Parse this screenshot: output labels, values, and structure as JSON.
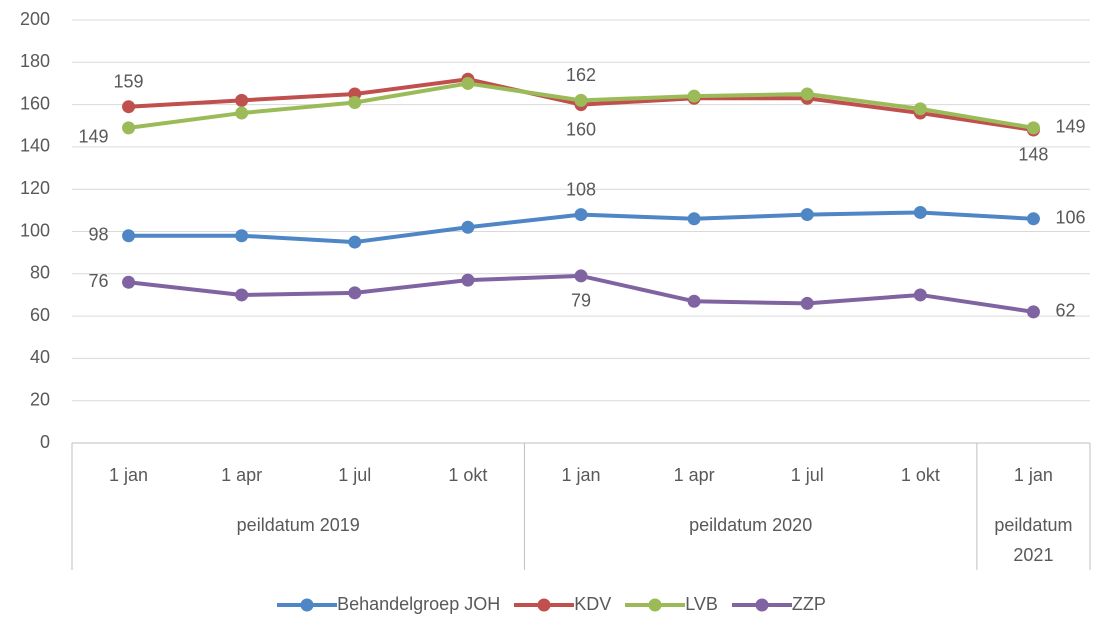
{
  "chart_data": {
    "type": "line",
    "categories": [
      "1 jan",
      "1 apr",
      "1 jul",
      "1 okt",
      "1 jan",
      "1 apr",
      "1 jul",
      "1 okt",
      "1 jan"
    ],
    "groups": [
      {
        "label": "peildatum 2019",
        "span": 4
      },
      {
        "label": "peildatum 2020",
        "span": 4
      },
      {
        "label": "peildatum 2021",
        "span": 1
      }
    ],
    "series": [
      {
        "name": "Behandelgroep JOH",
        "color": "#4f86c6",
        "values": [
          98,
          98,
          95,
          102,
          108,
          106,
          108,
          109,
          106
        ],
        "label_positions": [
          "left",
          "above",
          "right"
        ]
      },
      {
        "name": "KDV",
        "color": "#c0504d",
        "values": [
          159,
          162,
          165,
          172,
          160,
          163,
          163,
          156,
          148
        ],
        "label_positions": [
          "above",
          "below",
          "below"
        ]
      },
      {
        "name": "LVB",
        "color": "#9bbb59",
        "values": [
          149,
          156,
          161,
          170,
          162,
          164,
          165,
          158,
          149
        ],
        "label_positions": [
          "below-left",
          "above",
          "right"
        ]
      },
      {
        "name": "ZZP",
        "color": "#8064a2",
        "values": [
          76,
          70,
          71,
          77,
          79,
          67,
          66,
          70,
          62
        ],
        "label_positions": [
          "left",
          "below",
          "right"
        ]
      }
    ],
    "data_labels_at": [
      0,
      4,
      8
    ],
    "ylim": [
      0,
      200
    ],
    "yticks": [
      0,
      20,
      40,
      60,
      80,
      100,
      120,
      140,
      160,
      180,
      200
    ],
    "grid": true,
    "legend": "bottom"
  }
}
